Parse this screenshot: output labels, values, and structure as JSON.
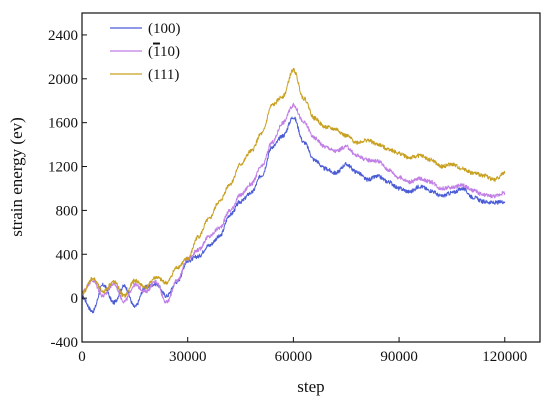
{
  "chart_data": {
    "type": "line",
    "xlabel": "step",
    "ylabel": "strain energy (ev)",
    "xlim": [
      0,
      130000
    ],
    "ylim": [
      -400,
      2600
    ],
    "xticks": [
      0,
      30000,
      60000,
      90000,
      120000
    ],
    "yticks": [
      -400,
      0,
      400,
      800,
      1200,
      1600,
      2000,
      2400
    ],
    "xtick_labels": [
      "0",
      "30000",
      "60000",
      "90000",
      "120000"
    ],
    "ytick_labels": [
      "-400",
      "0",
      "400",
      "800",
      "1200",
      "1600",
      "2000",
      "2400"
    ],
    "grid": false,
    "legend_position": "top-left",
    "series": [
      {
        "name": "(100)",
        "legend_overbar": "",
        "legend_rest": "(100)",
        "color": "#4a5bd6",
        "points": [
          [
            0,
            10
          ],
          [
            3000,
            -120
          ],
          [
            6000,
            120
          ],
          [
            9000,
            -40
          ],
          [
            12000,
            110
          ],
          [
            15000,
            -80
          ],
          [
            18000,
            100
          ],
          [
            21000,
            130
          ],
          [
            24000,
            20
          ],
          [
            27000,
            150
          ],
          [
            30000,
            340
          ],
          [
            33000,
            380
          ],
          [
            36000,
            480
          ],
          [
            39000,
            560
          ],
          [
            42000,
            760
          ],
          [
            45000,
            880
          ],
          [
            48000,
            960
          ],
          [
            51000,
            1120
          ],
          [
            54000,
            1380
          ],
          [
            57000,
            1480
          ],
          [
            60000,
            1650
          ],
          [
            63000,
            1420
          ],
          [
            66000,
            1260
          ],
          [
            69000,
            1180
          ],
          [
            72000,
            1140
          ],
          [
            75000,
            1220
          ],
          [
            78000,
            1150
          ],
          [
            81000,
            1080
          ],
          [
            84000,
            1110
          ],
          [
            87000,
            1060
          ],
          [
            90000,
            1000
          ],
          [
            93000,
            970
          ],
          [
            96000,
            1020
          ],
          [
            99000,
            980
          ],
          [
            102000,
            930
          ],
          [
            105000,
            960
          ],
          [
            108000,
            1000
          ],
          [
            111000,
            920
          ],
          [
            114000,
            880
          ],
          [
            117000,
            870
          ],
          [
            120000,
            880
          ]
        ]
      },
      {
        "name": "(¯110)",
        "legend_overbar": "1",
        "legend_rest": "10)",
        "color": "#c07ee6",
        "points": [
          [
            0,
            60
          ],
          [
            3000,
            160
          ],
          [
            6000,
            20
          ],
          [
            9000,
            130
          ],
          [
            12000,
            -30
          ],
          [
            15000,
            120
          ],
          [
            18000,
            60
          ],
          [
            21000,
            150
          ],
          [
            24000,
            -40
          ],
          [
            27000,
            160
          ],
          [
            30000,
            360
          ],
          [
            33000,
            440
          ],
          [
            36000,
            560
          ],
          [
            39000,
            640
          ],
          [
            42000,
            800
          ],
          [
            45000,
            940
          ],
          [
            48000,
            1040
          ],
          [
            51000,
            1200
          ],
          [
            54000,
            1420
          ],
          [
            57000,
            1600
          ],
          [
            60000,
            1760
          ],
          [
            63000,
            1600
          ],
          [
            66000,
            1460
          ],
          [
            69000,
            1380
          ],
          [
            72000,
            1340
          ],
          [
            75000,
            1380
          ],
          [
            78000,
            1300
          ],
          [
            81000,
            1260
          ],
          [
            84000,
            1250
          ],
          [
            87000,
            1170
          ],
          [
            90000,
            1100
          ],
          [
            93000,
            1060
          ],
          [
            96000,
            1090
          ],
          [
            99000,
            1060
          ],
          [
            102000,
            1000
          ],
          [
            105000,
            1010
          ],
          [
            108000,
            1030
          ],
          [
            111000,
            980
          ],
          [
            114000,
            940
          ],
          [
            117000,
            930
          ],
          [
            120000,
            960
          ]
        ]
      },
      {
        "name": "(111)",
        "legend_overbar": "",
        "legend_rest": "(111)",
        "color": "#c8a020",
        "points": [
          [
            0,
            40
          ],
          [
            3000,
            180
          ],
          [
            6000,
            60
          ],
          [
            9000,
            150
          ],
          [
            12000,
            20
          ],
          [
            15000,
            160
          ],
          [
            18000,
            100
          ],
          [
            21000,
            190
          ],
          [
            24000,
            140
          ],
          [
            27000,
            280
          ],
          [
            30000,
            360
          ],
          [
            33000,
            560
          ],
          [
            36000,
            720
          ],
          [
            39000,
            880
          ],
          [
            42000,
            1040
          ],
          [
            45000,
            1220
          ],
          [
            48000,
            1340
          ],
          [
            51000,
            1500
          ],
          [
            54000,
            1760
          ],
          [
            57000,
            1840
          ],
          [
            60000,
            2080
          ],
          [
            63000,
            1820
          ],
          [
            66000,
            1640
          ],
          [
            69000,
            1560
          ],
          [
            72000,
            1540
          ],
          [
            75000,
            1480
          ],
          [
            78000,
            1420
          ],
          [
            81000,
            1440
          ],
          [
            84000,
            1400
          ],
          [
            87000,
            1360
          ],
          [
            90000,
            1320
          ],
          [
            93000,
            1280
          ],
          [
            96000,
            1300
          ],
          [
            99000,
            1260
          ],
          [
            102000,
            1200
          ],
          [
            105000,
            1220
          ],
          [
            108000,
            1180
          ],
          [
            111000,
            1140
          ],
          [
            114000,
            1120
          ],
          [
            117000,
            1080
          ],
          [
            120000,
            1140
          ]
        ]
      }
    ]
  }
}
